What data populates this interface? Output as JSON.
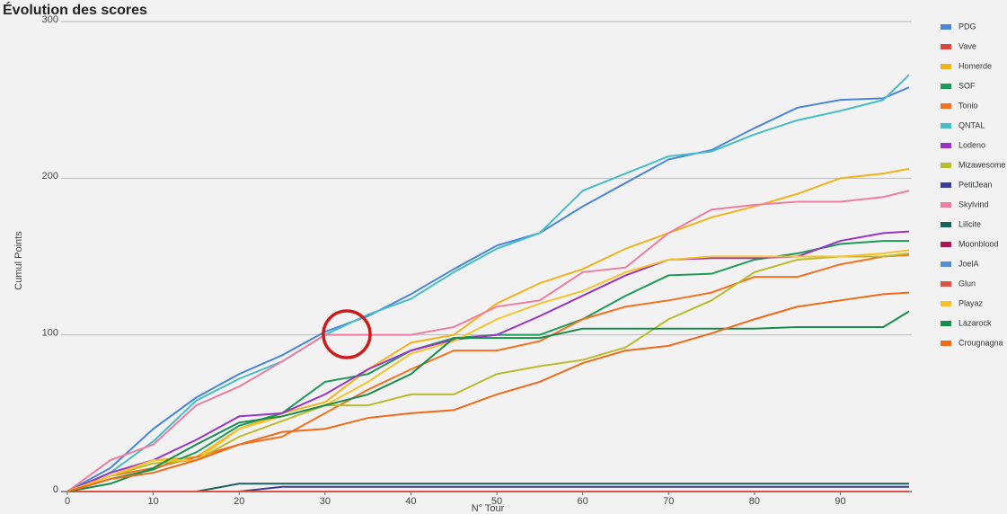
{
  "chart_data": {
    "type": "line",
    "title": "Évolution des scores",
    "x_label": "N° Tour",
    "y_label": "Cumul Points",
    "x": [
      0,
      5,
      10,
      15,
      20,
      25,
      30,
      35,
      40,
      45,
      50,
      55,
      60,
      65,
      70,
      75,
      80,
      85,
      90,
      95,
      98
    ],
    "xlim": [
      0,
      98
    ],
    "xticks": [
      0,
      10,
      20,
      30,
      40,
      50,
      60,
      70,
      80,
      90
    ],
    "ylim": [
      0,
      300
    ],
    "yticks": [
      0,
      100,
      200,
      300
    ],
    "grid": true,
    "legend": "right",
    "series": [
      {
        "name": "PDG",
        "color": "#4a86d8",
        "values": [
          0,
          15,
          40,
          60,
          75,
          87,
          102,
          112,
          126,
          142,
          157,
          165,
          182,
          197,
          212,
          218,
          232,
          245,
          250,
          251,
          258
        ]
      },
      {
        "name": "Vave",
        "color": "#e0463b",
        "values": [
          0,
          0,
          0,
          0,
          0,
          0,
          0,
          0,
          0,
          0,
          0,
          0,
          0,
          0,
          0,
          0,
          0,
          0,
          0,
          0,
          0
        ]
      },
      {
        "name": "Homerde",
        "color": "#f2b31c",
        "values": [
          0,
          10,
          20,
          22,
          40,
          50,
          57,
          78,
          95,
          100,
          120,
          133,
          142,
          155,
          165,
          175,
          182,
          190,
          200,
          203,
          206
        ]
      },
      {
        "name": "SOF",
        "color": "#1d9a57",
        "values": [
          0,
          8,
          14,
          25,
          42,
          50,
          70,
          75,
          90,
          98,
          100,
          100,
          110,
          125,
          138,
          139,
          148,
          152,
          158,
          160,
          160
        ]
      },
      {
        "name": "Tonio",
        "color": "#f4711f",
        "values": [
          0,
          10,
          15,
          22,
          30,
          35,
          50,
          65,
          78,
          90,
          90,
          96,
          110,
          118,
          122,
          127,
          137,
          137,
          145,
          150,
          151
        ]
      },
      {
        "name": "QNTAL",
        "color": "#47bdc6",
        "values": [
          0,
          12,
          32,
          58,
          72,
          83,
          100,
          113,
          123,
          140,
          155,
          165,
          192,
          203,
          214,
          217,
          228,
          237,
          243,
          250,
          266
        ]
      },
      {
        "name": "Lodeno",
        "color": "#9c33c7",
        "values": [
          0,
          12,
          20,
          33,
          48,
          50,
          62,
          78,
          90,
          97,
          100,
          112,
          125,
          138,
          148,
          149,
          149,
          150,
          160,
          165,
          166
        ]
      },
      {
        "name": "Mizawesome",
        "color": "#b9bc2f",
        "values": [
          0,
          10,
          18,
          20,
          35,
          45,
          55,
          55,
          62,
          62,
          75,
          80,
          84,
          92,
          110,
          122,
          140,
          148,
          150,
          150,
          152
        ]
      },
      {
        "name": "PetitJean",
        "color": "#3b3e98",
        "values": [
          0,
          0,
          0,
          0,
          0,
          3,
          3,
          3,
          3,
          3,
          3,
          3,
          3,
          3,
          3,
          3,
          3,
          3,
          3,
          3,
          3
        ]
      },
      {
        "name": "Skylvind",
        "color": "#ee7ea0",
        "values": [
          0,
          20,
          30,
          55,
          67,
          83,
          100,
          100,
          100,
          105,
          118,
          122,
          140,
          143,
          165,
          180,
          183,
          185,
          185,
          188,
          192
        ]
      },
      {
        "name": "Lilicite",
        "color": "#17635c",
        "values": [
          0,
          0,
          0,
          0,
          5,
          5,
          5,
          5,
          5,
          5,
          5,
          5,
          5,
          5,
          5,
          5,
          5,
          5,
          5,
          5,
          5
        ]
      },
      {
        "name": "Moonblood",
        "color": "#ad1557",
        "values": [
          0,
          0,
          0,
          0,
          0,
          0,
          0,
          0,
          0,
          0,
          0,
          0,
          0,
          0,
          0,
          0,
          0,
          0,
          0,
          0,
          0
        ]
      },
      {
        "name": "JoelA",
        "color": "#5a8fd6",
        "values": [
          0,
          0,
          0,
          0,
          0,
          0,
          0,
          0,
          0,
          0,
          0,
          0,
          0,
          0,
          0,
          0,
          0,
          0,
          0,
          0,
          0
        ]
      },
      {
        "name": "Glun",
        "color": "#de5145",
        "values": [
          0,
          0,
          0,
          0,
          0,
          0,
          0,
          0,
          0,
          0,
          0,
          0,
          0,
          0,
          0,
          0,
          0,
          0,
          0,
          0,
          0
        ]
      },
      {
        "name": "Playaz",
        "color": "#f7c22a",
        "values": [
          0,
          10,
          20,
          20,
          40,
          48,
          55,
          70,
          88,
          96,
          110,
          120,
          128,
          140,
          148,
          150,
          150,
          150,
          150,
          152,
          154
        ]
      },
      {
        "name": "Lazarock",
        "color": "#178c4c",
        "values": [
          0,
          5,
          15,
          30,
          44,
          48,
          55,
          62,
          75,
          98,
          98,
          98,
          104,
          104,
          104,
          104,
          104,
          105,
          105,
          105,
          115
        ]
      },
      {
        "name": "Crougnagna",
        "color": "#f06a1a",
        "values": [
          0,
          8,
          12,
          20,
          30,
          38,
          40,
          47,
          50,
          52,
          62,
          70,
          82,
          90,
          93,
          101,
          110,
          118,
          122,
          126,
          127
        ]
      }
    ]
  }
}
